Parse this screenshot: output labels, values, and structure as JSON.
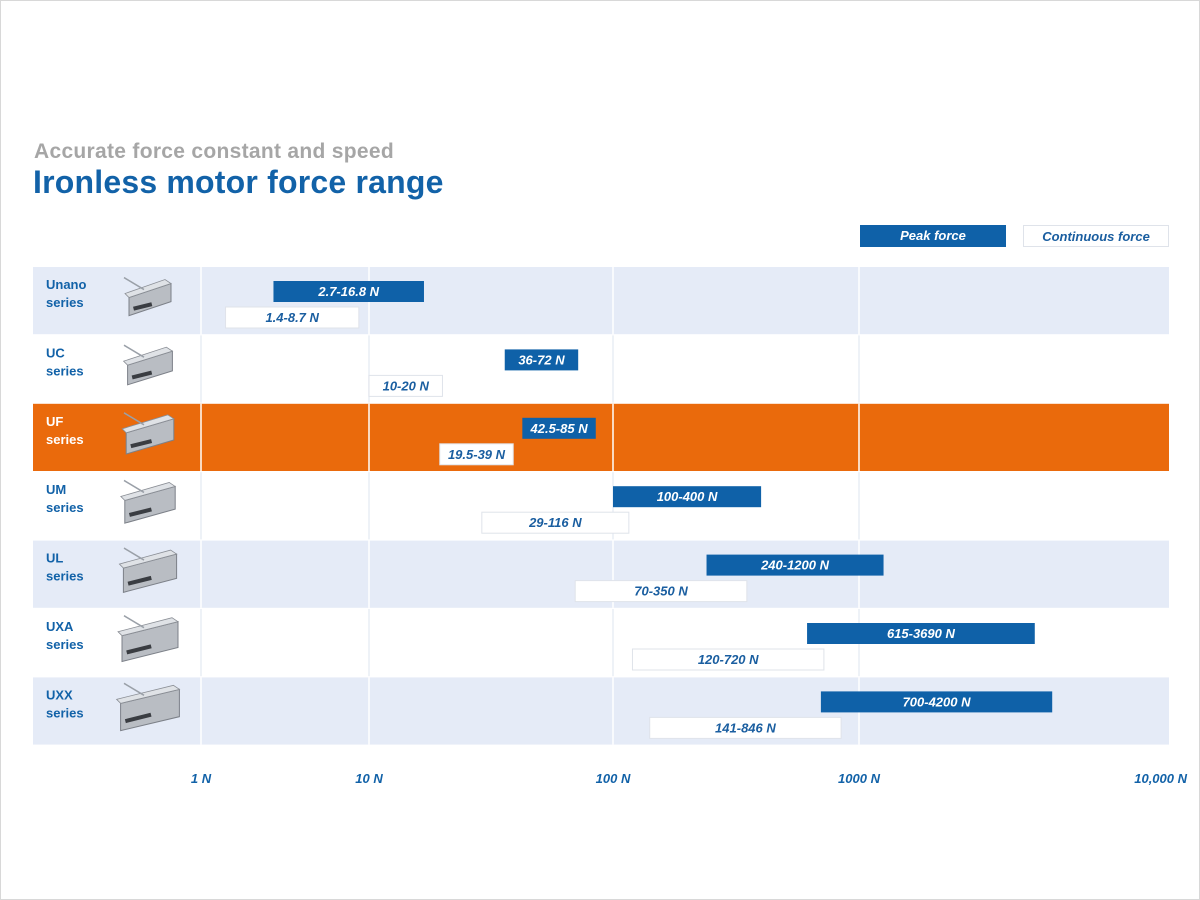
{
  "header": {
    "subtitle": "Accurate force constant and speed",
    "title": "Ironless motor force range"
  },
  "legend": {
    "peak": "Peak force",
    "continuous": "Continuous force"
  },
  "colors": {
    "peak": "#0f61a8",
    "continuous_bg": "#ffffff",
    "row_alt": "#e5ebf7",
    "row_plain": "#ffffff",
    "highlight": "#ea6a0c",
    "label_blue": "#1262a8"
  },
  "chart_data": {
    "type": "bar",
    "orientation": "horizontal-range",
    "x_scale": "log",
    "xlim": [
      1,
      10000
    ],
    "x_ticks": [
      {
        "value": 1,
        "label": "1 N"
      },
      {
        "value": 10,
        "label": "10 N"
      },
      {
        "value": 100,
        "label": "100 N"
      },
      {
        "value": 1000,
        "label": "1000 N"
      },
      {
        "value": 10000,
        "label": "10,000 N"
      }
    ],
    "legend_position": "top-right",
    "grid": true,
    "rows": [
      {
        "series": "Unano",
        "suffix": "series",
        "highlight": false,
        "peak": {
          "label": "2.7-16.8 N",
          "min": 2.7,
          "max": 16.8
        },
        "continuous": {
          "label": "1.4-8.7 N",
          "min": 1.4,
          "max": 8.7
        }
      },
      {
        "series": "UC",
        "suffix": "series",
        "highlight": false,
        "peak": {
          "label": "36-72 N",
          "min": 36,
          "max": 72
        },
        "continuous": {
          "label": "10-20 N",
          "min": 10,
          "max": 20
        }
      },
      {
        "series": "UF",
        "suffix": "series",
        "highlight": true,
        "peak": {
          "label": "42.5-85 N",
          "min": 42.5,
          "max": 85
        },
        "continuous": {
          "label": "19.5-39 N",
          "min": 19.5,
          "max": 39
        }
      },
      {
        "series": "UM",
        "suffix": "series",
        "highlight": false,
        "peak": {
          "label": "100-400 N",
          "min": 100,
          "max": 400
        },
        "continuous": {
          "label": "29-116 N",
          "min": 29,
          "max": 116
        }
      },
      {
        "series": "UL",
        "suffix": "series",
        "highlight": false,
        "peak": {
          "label": "240-1200 N",
          "min": 240,
          "max": 1200
        },
        "continuous": {
          "label": "70-350 N",
          "min": 70,
          "max": 350
        }
      },
      {
        "series": "UXA",
        "suffix": "series",
        "highlight": false,
        "peak": {
          "label": "615-3690 N",
          "min": 615,
          "max": 3690
        },
        "continuous": {
          "label": "120-720 N",
          "min": 120,
          "max": 720
        }
      },
      {
        "series": "UXX",
        "suffix": "series",
        "highlight": false,
        "peak": {
          "label": "700-4200 N",
          "min": 700,
          "max": 4200
        },
        "continuous": {
          "label": "141-846 N",
          "min": 141,
          "max": 846
        }
      }
    ]
  }
}
